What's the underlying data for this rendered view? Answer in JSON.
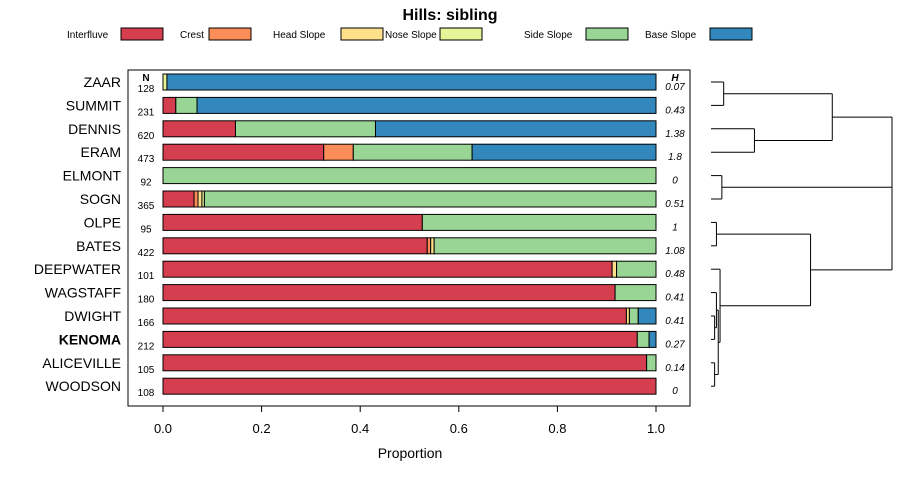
{
  "chart_data": {
    "type": "bar",
    "orientation": "horizontal-stacked",
    "title": "Hills: sibling",
    "xlabel": "Proportion",
    "xlim": [
      0,
      1
    ],
    "xticks": [
      "0.0",
      "0.2",
      "0.4",
      "0.6",
      "0.8",
      "1.0"
    ],
    "xtick_values": [
      0,
      0.2,
      0.4,
      0.6,
      0.8,
      1.0
    ],
    "n_header": "N",
    "h_header": "H",
    "highlight": "KENOMA",
    "legend": [
      {
        "name": "Interfluve",
        "color": "#d53e4f"
      },
      {
        "name": "Crest",
        "color": "#fc8d59"
      },
      {
        "name": "Head Slope",
        "color": "#fee08b"
      },
      {
        "name": "Nose Slope",
        "color": "#e6f598"
      },
      {
        "name": "Side Slope",
        "color": "#99d594"
      },
      {
        "name": "Base Slope",
        "color": "#3288bd"
      }
    ],
    "rows": [
      {
        "name": "ZAAR",
        "n": "128",
        "h": "0.07",
        "values": [
          0,
          0,
          0,
          0.008,
          0,
          0.992
        ]
      },
      {
        "name": "SUMMIT",
        "n": "231",
        "h": "0.43",
        "values": [
          0.026,
          0,
          0,
          0,
          0.043,
          0.931
        ]
      },
      {
        "name": "DENNIS",
        "n": "620",
        "h": "1.38",
        "values": [
          0.147,
          0,
          0,
          0,
          0.284,
          0.569
        ]
      },
      {
        "name": "ERAM",
        "n": "473",
        "h": "1.8",
        "values": [
          0.326,
          0.06,
          0,
          0,
          0.241,
          0.373
        ]
      },
      {
        "name": "ELMONT",
        "n": "92",
        "h": "0",
        "values": [
          0,
          0,
          0,
          0,
          1.0,
          0
        ]
      },
      {
        "name": "SOGN",
        "n": "365",
        "h": "0.51",
        "values": [
          0.063,
          0.008,
          0.008,
          0.005,
          0.916,
          0
        ]
      },
      {
        "name": "OLPE",
        "n": "95",
        "h": "1",
        "values": [
          0.526,
          0,
          0,
          0,
          0.474,
          0
        ]
      },
      {
        "name": "BATES",
        "n": "422",
        "h": "1.08",
        "values": [
          0.536,
          0.007,
          0.007,
          0,
          0.45,
          0
        ]
      },
      {
        "name": "DEEPWATER",
        "n": "101",
        "h": "0.48",
        "values": [
          0.911,
          0,
          0.009,
          0,
          0.08,
          0
        ]
      },
      {
        "name": "WAGSTAFF",
        "n": "180",
        "h": "0.41",
        "values": [
          0.917,
          0,
          0,
          0,
          0.083,
          0
        ]
      },
      {
        "name": "DWIGHT",
        "n": "166",
        "h": "0.41",
        "values": [
          0.94,
          0,
          0.006,
          0,
          0.018,
          0.036
        ]
      },
      {
        "name": "KENOMA",
        "n": "212",
        "h": "0.27",
        "values": [
          0.962,
          0,
          0,
          0,
          0.024,
          0.014
        ]
      },
      {
        "name": "ALICEVILLE",
        "n": "105",
        "h": "0.14",
        "values": [
          0.981,
          0,
          0,
          0,
          0.019,
          0
        ]
      },
      {
        "name": "WOODSON",
        "n": "108",
        "h": "0",
        "values": [
          1.0,
          0,
          0,
          0,
          0,
          0
        ]
      }
    ],
    "dendrogram": {
      "leaves": [
        "ZAAR",
        "SUMMIT",
        "DENNIS",
        "ERAM",
        "ELMONT",
        "SOGN",
        "OLPE",
        "BATES",
        "DEEPWATER",
        "WAGSTAFF",
        "DWIGHT",
        "KENOMA",
        "ALICEVILLE",
        "WOODSON"
      ],
      "merges": [
        {
          "left": 0,
          "right": 1,
          "height": 0.07
        },
        {
          "left": 2,
          "right": 3,
          "height": 0.24
        },
        {
          "left": 4,
          "right": 5,
          "height": 0.06
        },
        {
          "left": 6,
          "right": 7,
          "height": 0.03
        },
        {
          "left": 10,
          "right": 11,
          "height": 0.02
        },
        {
          "left": 12,
          "right": 13,
          "height": 0.02
        },
        {
          "left": "9",
          "right": "10+11",
          "height": 0.03
        },
        {
          "left": "9+10+11",
          "right": "12+13",
          "height": 0.04
        },
        {
          "left": "8",
          "right": "9-13",
          "height": 0.05
        },
        {
          "left": "6+7",
          "right": "8-13",
          "height": 0.55
        },
        {
          "left": "0+1",
          "right": "2+3",
          "height": 0.67
        },
        {
          "left": "4+5",
          "right": "6-13",
          "height": 1.0
        },
        {
          "left": "0-3",
          "right": "4-13",
          "height": 1.0
        }
      ]
    }
  }
}
